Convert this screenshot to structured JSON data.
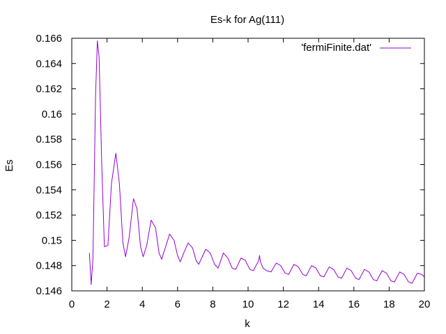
{
  "chart_data": {
    "type": "line",
    "title": "Es-k for Ag(111)",
    "xlabel": "k",
    "ylabel": "Es",
    "xlim": [
      0,
      20
    ],
    "ylim": [
      0.146,
      0.166
    ],
    "x_ticks": [
      0,
      2,
      4,
      6,
      8,
      10,
      12,
      14,
      16,
      18,
      20
    ],
    "x_tick_labels": [
      "0",
      "2",
      "4",
      "6",
      "8",
      "10",
      "12",
      "14",
      "16",
      "18",
      "20"
    ],
    "y_ticks": [
      0.146,
      0.148,
      0.15,
      0.152,
      0.154,
      0.156,
      0.158,
      0.16,
      0.162,
      0.164,
      0.166
    ],
    "y_tick_labels": [
      "0.146",
      "0.148",
      "0.15",
      "0.152",
      "0.154",
      "0.156",
      "0.158",
      "0.16",
      "0.162",
      "0.164",
      "0.166"
    ],
    "grid": false,
    "legend_position": "top-right",
    "series": [
      {
        "name": "'fermiFinite.dat'",
        "color": "#9400d3",
        "x": [
          1.0,
          1.1,
          1.2,
          1.35,
          1.45,
          1.55,
          1.7,
          1.85,
          2.05,
          2.25,
          2.5,
          2.7,
          2.9,
          3.05,
          3.25,
          3.5,
          3.7,
          3.9,
          4.05,
          4.25,
          4.5,
          4.75,
          4.95,
          5.1,
          5.3,
          5.55,
          5.8,
          6.0,
          6.15,
          6.35,
          6.6,
          6.85,
          7.05,
          7.2,
          7.4,
          7.6,
          7.85,
          8.1,
          8.3,
          8.6,
          8.85,
          9.1,
          9.3,
          9.6,
          9.85,
          10.1,
          10.3,
          10.6,
          10.65,
          10.7,
          10.85,
          11.05,
          11.3,
          11.6,
          11.85,
          12.1,
          12.3,
          12.6,
          12.85,
          13.1,
          13.3,
          13.6,
          13.85,
          14.1,
          14.3,
          14.6,
          14.85,
          15.1,
          15.3,
          15.6,
          15.85,
          16.1,
          16.3,
          16.6,
          16.85,
          17.1,
          17.3,
          17.6,
          17.85,
          18.1,
          18.3,
          18.6,
          18.85,
          19.1,
          19.3,
          19.6,
          19.85,
          20.0
        ],
        "y": [
          0.149,
          0.1465,
          0.1485,
          0.1615,
          0.1658,
          0.1645,
          0.156,
          0.1495,
          0.1496,
          0.1545,
          0.1569,
          0.1545,
          0.1498,
          0.1487,
          0.1502,
          0.1533,
          0.1525,
          0.1495,
          0.1487,
          0.1496,
          0.1516,
          0.151,
          0.149,
          0.1485,
          0.1494,
          0.1505,
          0.15,
          0.1488,
          0.1483,
          0.149,
          0.1498,
          0.1494,
          0.1484,
          0.1481,
          0.1487,
          0.1493,
          0.149,
          0.1481,
          0.1478,
          0.149,
          0.1486,
          0.1478,
          0.1477,
          0.1486,
          0.1484,
          0.1477,
          0.1476,
          0.1484,
          0.1488,
          0.1483,
          0.1478,
          0.1476,
          0.1475,
          0.1482,
          0.148,
          0.1474,
          0.1473,
          0.1481,
          0.1479,
          0.1473,
          0.1472,
          0.148,
          0.1478,
          0.1472,
          0.1471,
          0.1479,
          0.1477,
          0.1471,
          0.147,
          0.1478,
          0.1476,
          0.147,
          0.1469,
          0.1477,
          0.1475,
          0.1469,
          0.1468,
          0.1476,
          0.1474,
          0.1468,
          0.1467,
          0.1475,
          0.1473,
          0.1467,
          0.1466,
          0.1474,
          0.1473,
          0.1471
        ]
      }
    ]
  }
}
